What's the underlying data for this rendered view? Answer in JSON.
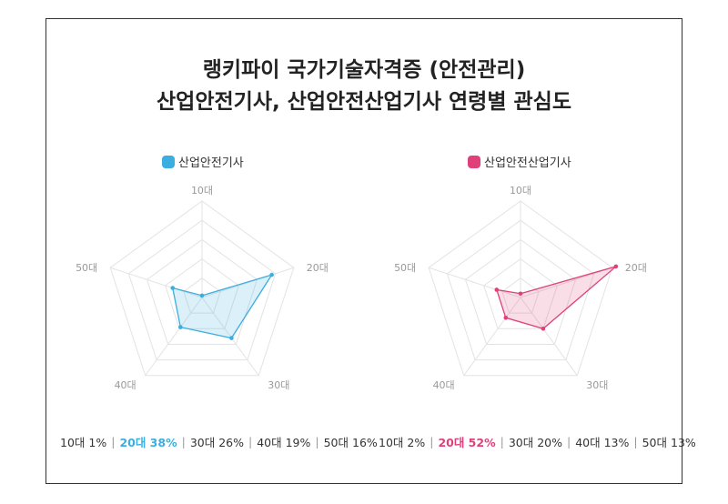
{
  "title_line1": "랭키파이 국가기술자격증 (안전관리)",
  "title_line2": "산업안전기사, 산업안전산업기사 연령별 관심도",
  "chart_data": [
    {
      "type": "radar",
      "legend": "산업안전기사",
      "color": "#3aaee0",
      "categories": [
        "10대",
        "20대",
        "30대",
        "40대",
        "50대"
      ],
      "values": [
        1,
        38,
        26,
        19,
        16
      ],
      "highlight_index": 1,
      "stats": [
        "10대 1%",
        "20대 38%",
        "30대 26%",
        "40대 19%",
        "50대 16%"
      ]
    },
    {
      "type": "radar",
      "legend": "산업안전산업기사",
      "color": "#e0407a",
      "categories": [
        "10대",
        "20대",
        "30대",
        "40대",
        "50대"
      ],
      "values": [
        2,
        52,
        20,
        13,
        13
      ],
      "highlight_index": 1,
      "stats": [
        "10대 2%",
        "20대 52%",
        "30대 20%",
        "40대 13%",
        "50대 13%"
      ]
    }
  ]
}
